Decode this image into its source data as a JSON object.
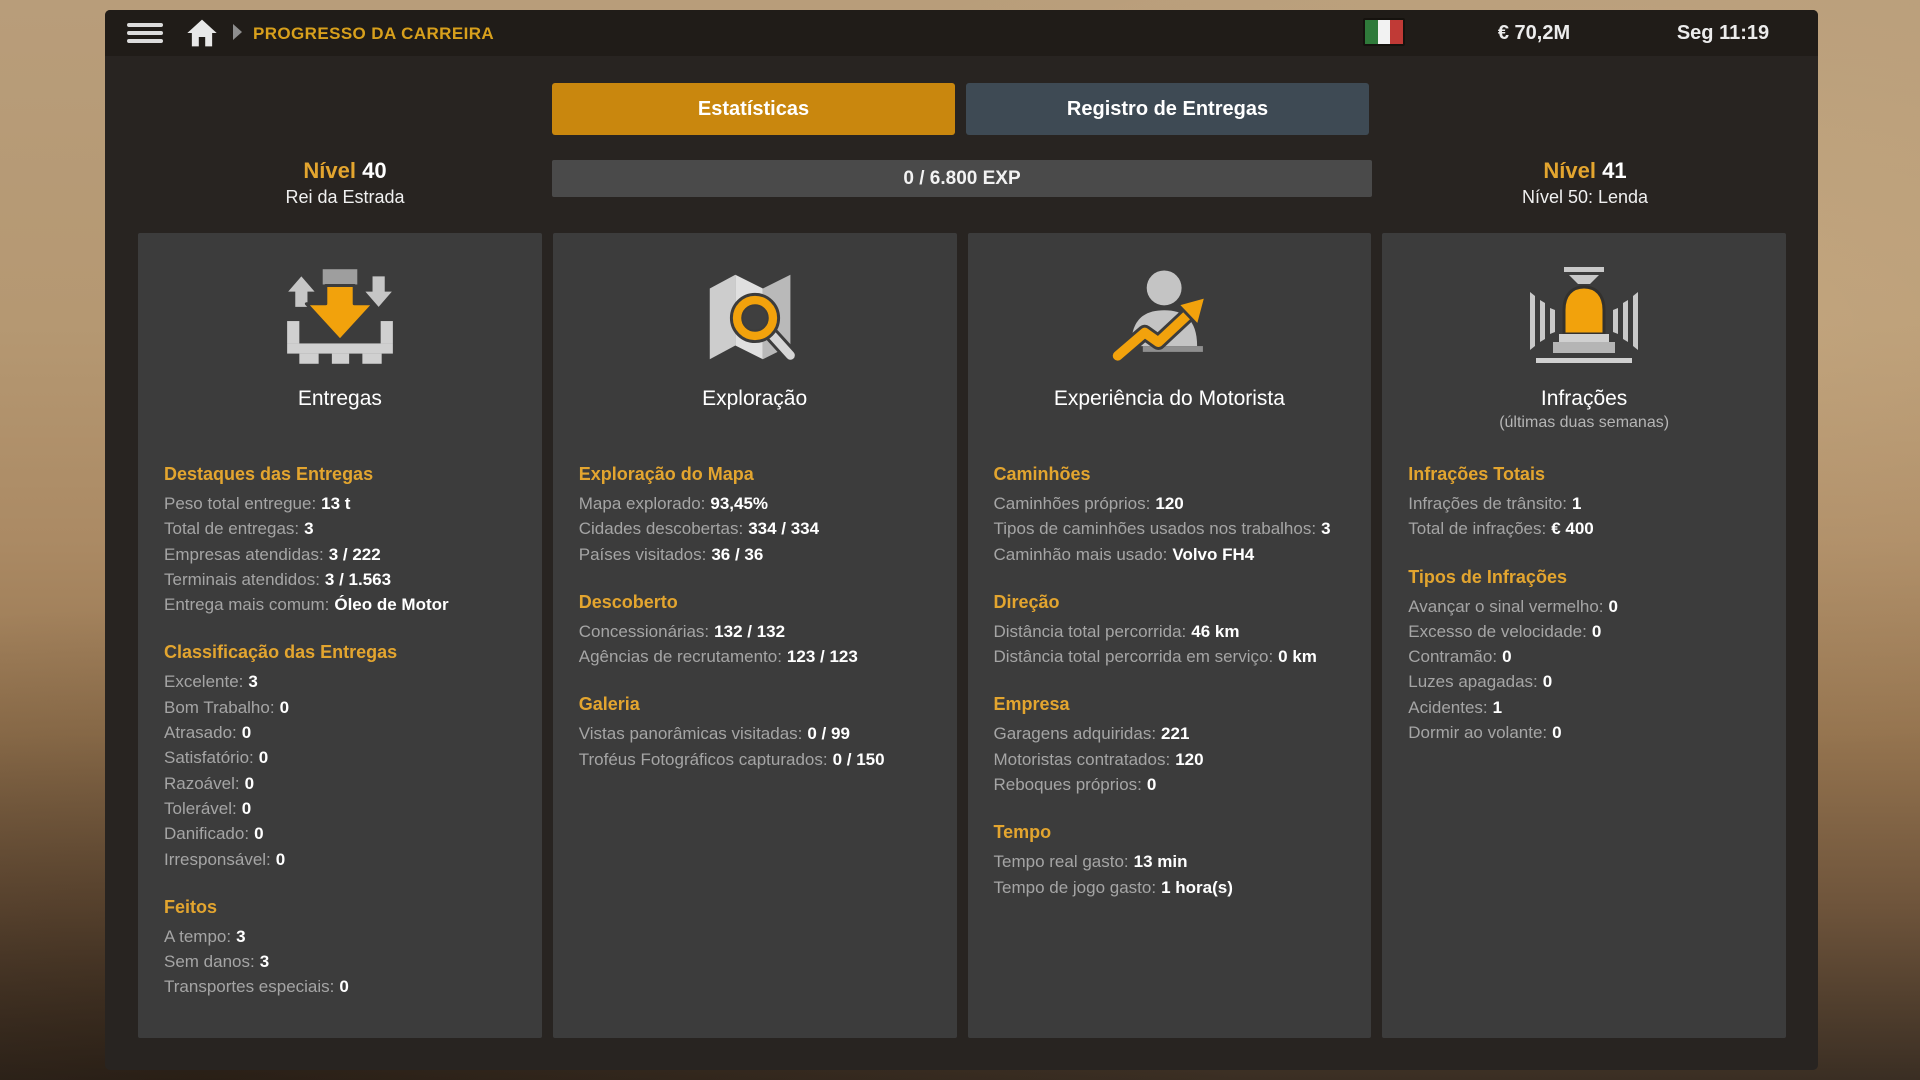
{
  "topbar": {
    "breadcrumb": "PROGRESSO DA CARREIRA",
    "money": "€ 70,2M",
    "time": "Seg 11:19",
    "flag": "italy-flag"
  },
  "tabs": {
    "statistics": "Estatísticas",
    "delivery_log": "Registro de Entregas"
  },
  "level": {
    "current_label": "Nível",
    "current_value": "40",
    "current_title": "Rei da Estrada",
    "next_label": "Nível",
    "next_value": "41",
    "next_title": "Nível 50: Lenda",
    "exp_text": "0 / 6.800 EXP"
  },
  "colors": {
    "accent_orange": "#e3a52f",
    "tab_active": "#c9870e",
    "tab_inactive": "#3e4a54",
    "panel_bg": "#282421",
    "card_bg": "#3c3c3c",
    "flag_green": "#2f7a3a",
    "flag_white": "#f2f2f2",
    "flag_red": "#c03a36"
  },
  "cards": [
    {
      "title": "Entregas",
      "subtitle": "",
      "icon": "delivery-icon",
      "sections": [
        {
          "header": "Destaques das Entregas",
          "rows": [
            {
              "label": "Peso total entregue:",
              "value": "13 t"
            },
            {
              "label": "Total de entregas:",
              "value": "3"
            },
            {
              "label": "Empresas atendidas:",
              "value": "3 / 222"
            },
            {
              "label": "Terminais atendidos:",
              "value": "3 / 1.563"
            },
            {
              "label": "Entrega mais comum:",
              "value": "Óleo de Motor"
            }
          ]
        },
        {
          "header": "Classificação das Entregas",
          "rows": [
            {
              "label": "Excelente:",
              "value": "3"
            },
            {
              "label": "Bom Trabalho:",
              "value": "0"
            },
            {
              "label": "Atrasado:",
              "value": "0"
            },
            {
              "label": "Satisfatório:",
              "value": "0"
            },
            {
              "label": "Razoável:",
              "value": "0"
            },
            {
              "label": "Tolerável:",
              "value": "0"
            },
            {
              "label": "Danificado:",
              "value": "0"
            },
            {
              "label": "Irresponsável:",
              "value": "0"
            }
          ]
        },
        {
          "header": "Feitos",
          "rows": [
            {
              "label": "A tempo:",
              "value": "3"
            },
            {
              "label": "Sem danos:",
              "value": "3"
            },
            {
              "label": "Transportes especiais:",
              "value": "0"
            }
          ]
        }
      ]
    },
    {
      "title": "Exploração",
      "subtitle": "",
      "icon": "exploration-icon",
      "sections": [
        {
          "header": "Exploração do Mapa",
          "rows": [
            {
              "label": "Mapa explorado:",
              "value": "93,45%"
            },
            {
              "label": "Cidades descobertas:",
              "value": "334 / 334"
            },
            {
              "label": "Países visitados:",
              "value": "36 / 36"
            }
          ]
        },
        {
          "header": "Descoberto",
          "rows": [
            {
              "label": "Concessionárias:",
              "value": "132 / 132"
            },
            {
              "label": "Agências de recrutamento:",
              "value": "123 / 123"
            }
          ]
        },
        {
          "header": "Galeria",
          "rows": [
            {
              "label": "Vistas panorâmicas visitadas:",
              "value": "0 / 99"
            },
            {
              "label": "Troféus Fotográficos capturados:",
              "value": "0 / 150"
            }
          ]
        }
      ]
    },
    {
      "title": "Experiência do Motorista",
      "subtitle": "",
      "icon": "driver-xp-icon",
      "sections": [
        {
          "header": "Caminhões",
          "rows": [
            {
              "label": "Caminhões próprios:",
              "value": "120"
            },
            {
              "label": "Tipos de caminhões usados nos trabalhos:",
              "value": "3"
            },
            {
              "label": "Caminhão mais usado:",
              "value": "Volvo FH4"
            }
          ]
        },
        {
          "header": "Direção",
          "rows": [
            {
              "label": "Distância total percorrida:",
              "value": "46 km"
            },
            {
              "label": "Distância total percorrida em serviço:",
              "value": "0 km"
            }
          ]
        },
        {
          "header": "Empresa",
          "rows": [
            {
              "label": "Garagens adquiridas:",
              "value": "221"
            },
            {
              "label": "Motoristas contratados:",
              "value": "120"
            },
            {
              "label": "Reboques próprios:",
              "value": "0"
            }
          ]
        },
        {
          "header": "Tempo",
          "rows": [
            {
              "label": "Tempo real gasto:",
              "value": "13 min"
            },
            {
              "label": "Tempo de jogo gasto:",
              "value": "1 hora(s)"
            }
          ]
        }
      ]
    },
    {
      "title": "Infrações",
      "subtitle": "(últimas duas semanas)",
      "icon": "infractions-icon",
      "sections": [
        {
          "header": "Infrações Totais",
          "rows": [
            {
              "label": "Infrações de trânsito:",
              "value": "1"
            },
            {
              "label": "Total de infrações:",
              "value": "€ 400"
            }
          ]
        },
        {
          "header": "Tipos de Infrações",
          "rows": [
            {
              "label": "Avançar o sinal vermelho:",
              "value": "0"
            },
            {
              "label": "Excesso de velocidade:",
              "value": "0"
            },
            {
              "label": "Contramão:",
              "value": "0"
            },
            {
              "label": "Luzes apagadas:",
              "value": "0"
            },
            {
              "label": "Acidentes:",
              "value": "1"
            },
            {
              "label": "Dormir ao volante:",
              "value": "0"
            }
          ]
        }
      ]
    }
  ]
}
